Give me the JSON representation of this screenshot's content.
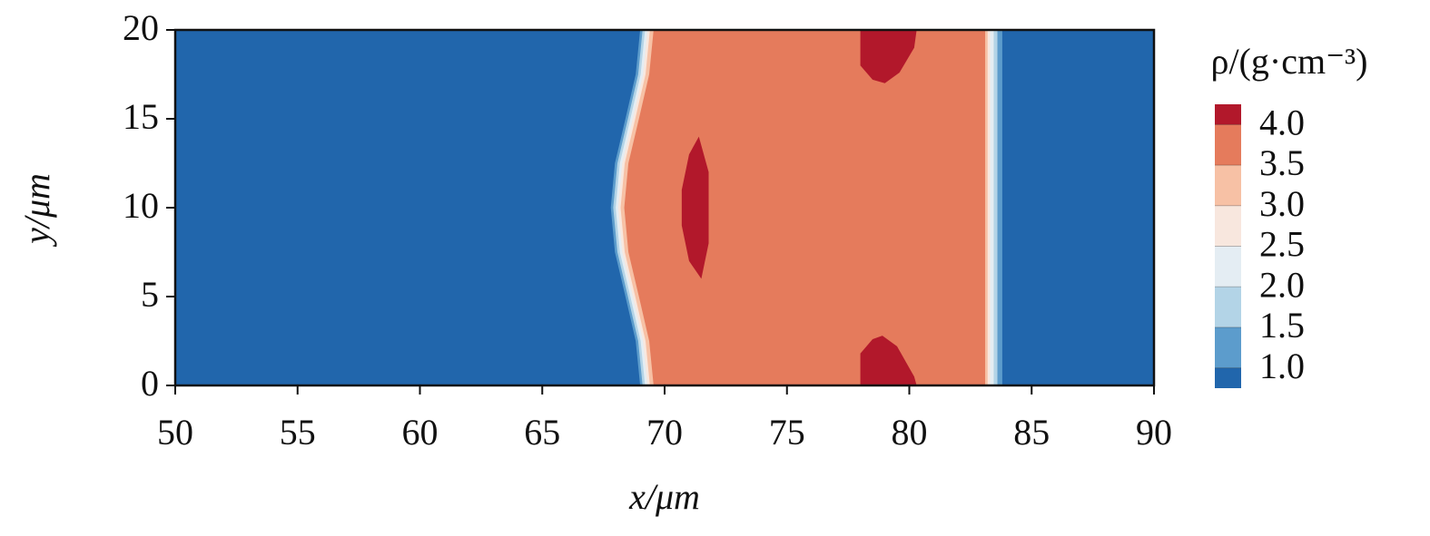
{
  "chart_data": {
    "type": "contour",
    "xlabel": "x/μm",
    "ylabel": "y/μm",
    "xlim": [
      50,
      90
    ],
    "ylim": [
      0,
      20
    ],
    "xticks": [
      50,
      55,
      60,
      65,
      70,
      75,
      80,
      85,
      90
    ],
    "yticks": [
      0,
      5,
      10,
      15,
      20
    ],
    "colorbar": {
      "label": "ρ/(g·cm⁻³)",
      "lim": [
        0.75,
        4.25
      ],
      "ticks": [
        {
          "value": 1,
          "label": "1.0"
        },
        {
          "value": 1.5,
          "label": "1.5"
        },
        {
          "value": 2,
          "label": "2.0"
        },
        {
          "value": 2.5,
          "label": "2.5"
        },
        {
          "value": 3,
          "label": "3.0"
        },
        {
          "value": 3.5,
          "label": "3.5"
        },
        {
          "value": 4,
          "label": "4.0"
        }
      ],
      "colors": [
        "#2166ac",
        "#5c9ccc",
        "#b3d4e7",
        "#e4edf3",
        "#f8e7de",
        "#f7c1a5",
        "#e57b5c",
        "#b2182b"
      ]
    },
    "contours": [
      {
        "level": 1,
        "x": [
          69.0,
          68.82,
          68.4,
          67.97,
          67.8,
          67.97,
          68.4,
          68.82,
          69.0,
          83.8,
          83.8
        ],
        "y": [
          0,
          2.5,
          5,
          7.5,
          10,
          12.5,
          15,
          17.5,
          20,
          20,
          0
        ]
      },
      {
        "level": 1.5,
        "x": [
          69.1,
          68.92,
          68.5,
          68.07,
          67.9,
          68.07,
          68.5,
          68.92,
          69.1,
          83.6,
          83.6
        ],
        "y": [
          0,
          2.5,
          5,
          7.5,
          10,
          12.5,
          15,
          17.5,
          20,
          20,
          0
        ]
      },
      {
        "level": 2,
        "x": [
          69.2,
          69.02,
          68.6,
          68.17,
          68.0,
          68.17,
          68.6,
          69.02,
          69.2,
          83.45,
          83.45
        ],
        "y": [
          0,
          2.5,
          5,
          7.5,
          10,
          12.5,
          15,
          17.5,
          20,
          20,
          0
        ]
      },
      {
        "level": 2.5,
        "x": [
          69.3,
          69.12,
          68.7,
          68.27,
          68.1,
          68.27,
          68.7,
          69.12,
          69.3,
          83.3,
          83.3
        ],
        "y": [
          0,
          2.5,
          5,
          7.5,
          10,
          12.5,
          15,
          17.5,
          20,
          20,
          0
        ]
      },
      {
        "level": 3,
        "x": [
          69.4,
          69.22,
          68.8,
          68.37,
          68.2,
          68.37,
          68.8,
          69.22,
          69.4,
          83.2,
          83.2
        ],
        "y": [
          0,
          2.5,
          5,
          7.5,
          10,
          12.5,
          15,
          17.5,
          20,
          20,
          0
        ]
      },
      {
        "level": 3.5,
        "x": [
          69.55,
          69.37,
          68.95,
          68.52,
          68.35,
          68.52,
          68.95,
          69.37,
          69.55,
          83.1,
          83.1
        ],
        "y": [
          0,
          2.5,
          5,
          7.5,
          10,
          12.5,
          15,
          17.5,
          20,
          20,
          0
        ]
      },
      {
        "level": 4,
        "x": [
          71.5,
          71.8,
          71.8,
          71.4,
          71.0,
          70.7,
          70.7,
          71.0
        ],
        "y": [
          6,
          8,
          12,
          14,
          13,
          11,
          9,
          7
        ]
      },
      {
        "level": 4,
        "x": [
          78.0,
          78.0,
          78.5,
          79.0,
          79.6,
          80.2,
          80.3
        ],
        "y": [
          20,
          18,
          17.2,
          17.0,
          17.6,
          19,
          20
        ]
      },
      {
        "level": 4,
        "x": [
          78.0,
          78.0,
          78.5,
          78.9,
          79.5,
          80.2,
          80.3
        ],
        "y": [
          0,
          1.8,
          2.6,
          2.8,
          2.2,
          0.5,
          0
        ]
      }
    ]
  }
}
